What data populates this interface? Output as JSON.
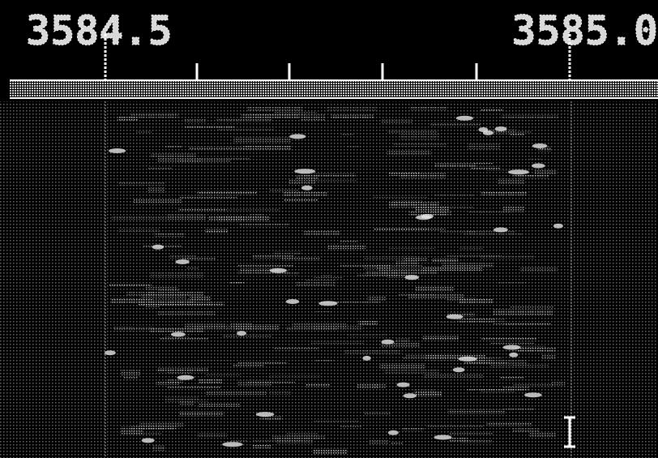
{
  "scale": {
    "left_label": "3584.5",
    "right_label": "3585.0"
  }
}
